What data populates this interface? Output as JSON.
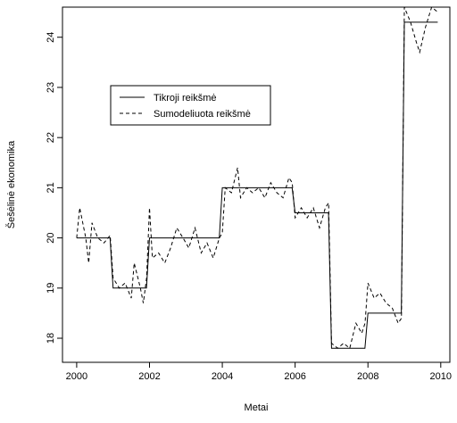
{
  "chart_data": {
    "type": "line",
    "x_label": "Metai",
    "y_label": "Šešėlinė ekonomika",
    "xlim": [
      1999.61,
      2010.25
    ],
    "ylim": [
      17.52,
      24.6
    ],
    "xticks": [
      2000,
      2002,
      2004,
      2006,
      2008,
      2010
    ],
    "yticks": [
      18,
      19,
      20,
      21,
      22,
      23,
      24
    ],
    "legend": "top-left",
    "series": [
      {
        "name": "Tikroji reikšmė",
        "color": "#000000",
        "dash": "solid",
        "x": [
          2000,
          2000.917,
          2001,
          2001.917,
          2002,
          2003.917,
          2004,
          2005.917,
          2006,
          2006.917,
          2007,
          2007.917,
          2008,
          2008.917,
          2009,
          2009.917
        ],
        "values": [
          20,
          20,
          19,
          19,
          20,
          20,
          21,
          21,
          20.5,
          20.5,
          17.8,
          17.8,
          18.5,
          18.5,
          24.3,
          24.3
        ]
      },
      {
        "name": "Sumodeliuota reikšmė",
        "color": "#000000",
        "dash": "dashed",
        "x": [
          2000,
          2000.083,
          2000.25,
          2000.33,
          2000.42,
          2000.58,
          2000.75,
          2000.92,
          2001.0,
          2001.17,
          2001.33,
          2001.5,
          2001.58,
          2001.75,
          2001.83,
          2001.92,
          2002.0,
          2002.08,
          2002.25,
          2002.42,
          2002.58,
          2002.75,
          2002.92,
          2003.08,
          2003.25,
          2003.42,
          2003.58,
          2003.75,
          2003.92,
          2004.0,
          2004.08,
          2004.25,
          2004.42,
          2004.5,
          2004.67,
          2004.83,
          2005.0,
          2005.17,
          2005.33,
          2005.5,
          2005.67,
          2005.83,
          2005.92,
          2006.0,
          2006.17,
          2006.33,
          2006.5,
          2006.67,
          2006.83,
          2006.92,
          2007.0,
          2007.17,
          2007.33,
          2007.5,
          2007.67,
          2007.83,
          2007.92,
          2008.0,
          2008.17,
          2008.33,
          2008.5,
          2008.67,
          2008.83,
          2008.92,
          2009.0,
          2009.17,
          2009.33,
          2009.42,
          2009.58,
          2009.75,
          2009.92
        ],
        "values": [
          20.0,
          20.6,
          20.0,
          19.5,
          20.3,
          20.0,
          19.9,
          20.05,
          19.2,
          19.0,
          19.1,
          18.8,
          19.5,
          19.0,
          18.7,
          19.2,
          20.6,
          19.6,
          19.7,
          19.5,
          19.8,
          20.2,
          20.0,
          19.8,
          20.2,
          19.7,
          19.9,
          19.6,
          20.0,
          20.1,
          21.0,
          20.9,
          21.4,
          20.8,
          21.0,
          20.9,
          21.0,
          20.8,
          21.1,
          20.9,
          20.8,
          21.2,
          21.1,
          20.4,
          20.6,
          20.4,
          20.6,
          20.2,
          20.6,
          20.7,
          17.9,
          17.8,
          17.9,
          17.8,
          18.3,
          18.1,
          18.3,
          19.1,
          18.8,
          18.9,
          18.7,
          18.6,
          18.3,
          18.4,
          24.6,
          24.3,
          23.9,
          23.7,
          24.2,
          24.6,
          24.5
        ]
      }
    ]
  }
}
